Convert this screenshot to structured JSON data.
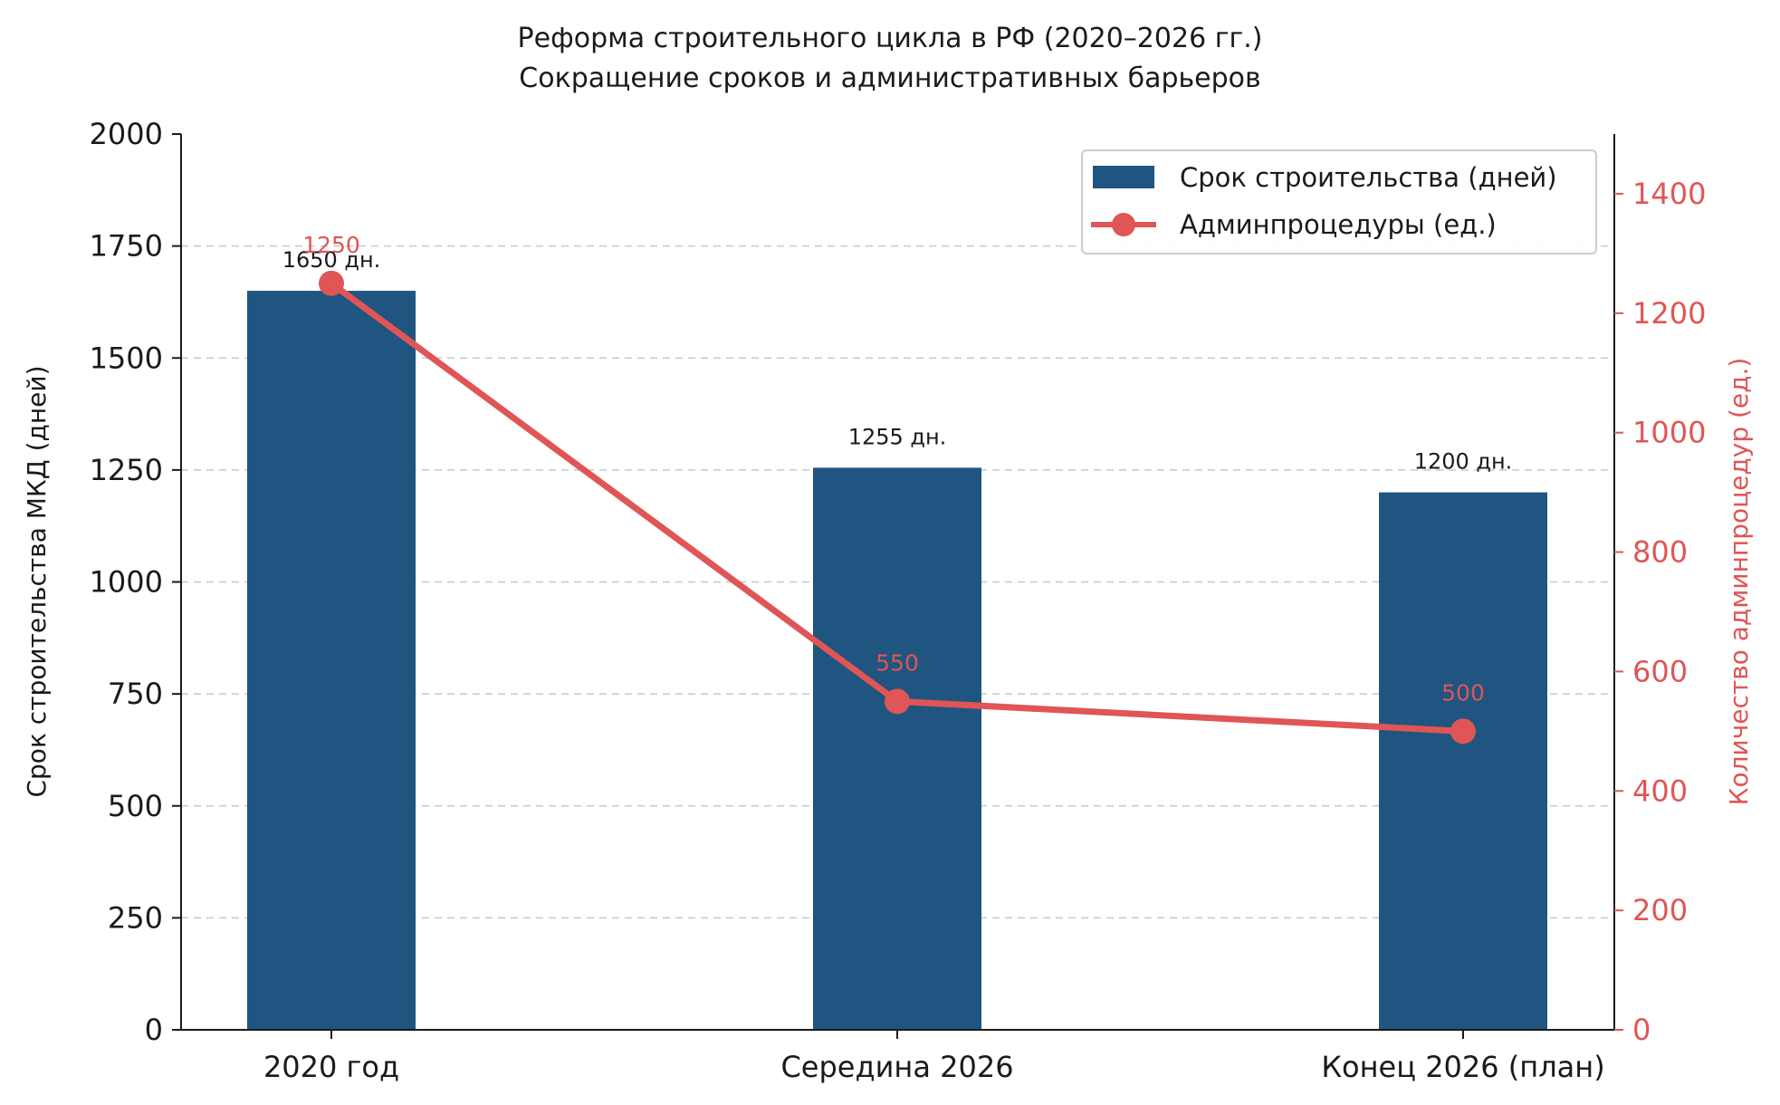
{
  "chart_data": {
    "type": "bar",
    "title": "Реформа строительного цикла в РФ (2020–2026 гг.)",
    "subtitle": "Сокращение сроков и административных барьеров",
    "categories": [
      "2020 год",
      "Середина 2026",
      "Конец 2026 (план)"
    ],
    "ylabel_left": "Срок строительства МКД (дней)",
    "ylabel_right": "Количество админпроцедур (ед.)",
    "ylim_left": [
      0,
      2000
    ],
    "ylim_right": [
      0,
      1500
    ],
    "yticks_left": [
      0,
      250,
      500,
      750,
      1000,
      1250,
      1500,
      1750,
      2000
    ],
    "yticks_right": [
      0,
      200,
      400,
      600,
      800,
      1000,
      1200,
      1400
    ],
    "grid": "horizontal-dashed",
    "legend_position": "top-right",
    "series": [
      {
        "name": "Срок строительства (дней)",
        "type": "bar",
        "axis": "left",
        "color": "#1f5580",
        "values": [
          1650,
          1255,
          1200
        ],
        "labels": [
          "1650 дн.",
          "1255 дн.",
          "1200 дн."
        ]
      },
      {
        "name": "Админпроцедуры (ед.)",
        "type": "line",
        "axis": "right",
        "color": "#e05555",
        "values": [
          1250,
          550,
          500
        ],
        "labels": [
          "1250",
          "550",
          "500"
        ]
      }
    ]
  }
}
